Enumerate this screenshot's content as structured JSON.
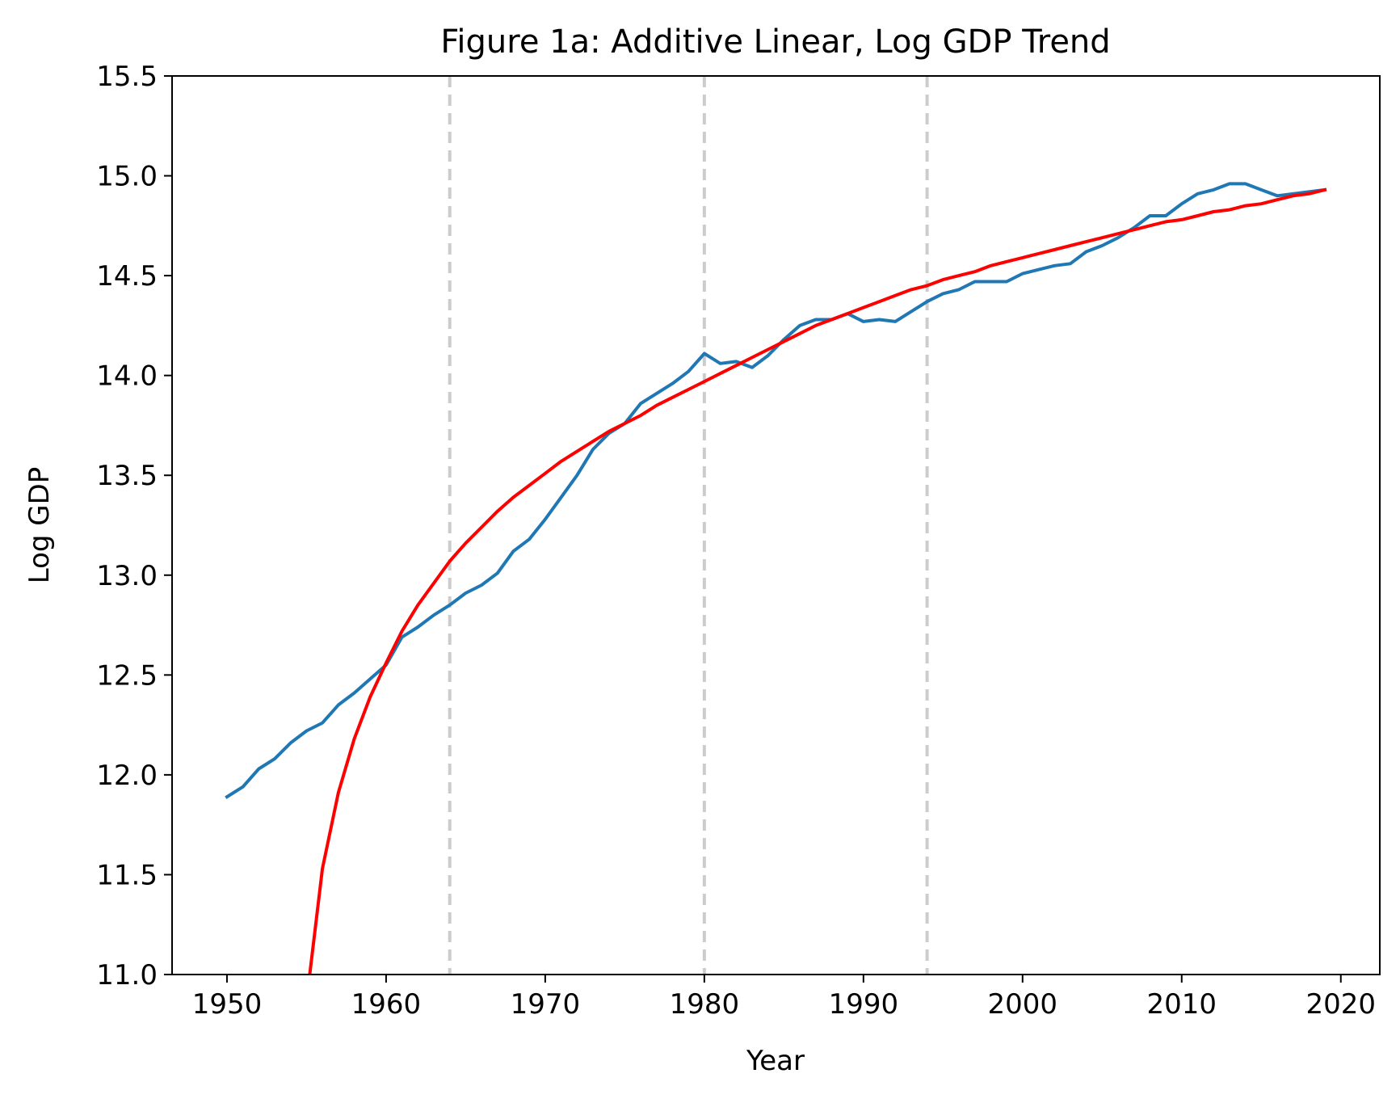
{
  "chart_data": {
    "type": "line",
    "title": "Figure 1a: Additive Linear, Log GDP Trend",
    "xlabel": "Year",
    "ylabel": "Log GDP",
    "xlim": [
      1946.55,
      2022.45
    ],
    "ylim": [
      11.0,
      15.5
    ],
    "xticks": [
      1950,
      1960,
      1970,
      1980,
      1990,
      2000,
      2010,
      2020
    ],
    "xtick_labels": [
      "1950",
      "1960",
      "1970",
      "1980",
      "1990",
      "2000",
      "2010",
      "2020"
    ],
    "yticks": [
      11.0,
      11.5,
      12.0,
      12.5,
      13.0,
      13.5,
      14.0,
      14.5,
      15.0,
      15.5
    ],
    "ytick_labels": [
      "11.0",
      "11.5",
      "12.0",
      "12.5",
      "13.0",
      "13.5",
      "14.0",
      "14.5",
      "15.0",
      "15.5"
    ],
    "grid": false,
    "reference_lines": {
      "orientation": "vertical",
      "style": "dashed",
      "color": "#cccccc",
      "x": [
        1964,
        1980,
        1994
      ]
    },
    "series": [
      {
        "color": "#1f77b4",
        "x": [
          1950,
          1951,
          1952,
          1953,
          1954,
          1955,
          1956,
          1957,
          1958,
          1959,
          1960,
          1961,
          1962,
          1963,
          1964,
          1965,
          1966,
          1967,
          1968,
          1969,
          1970,
          1971,
          1972,
          1973,
          1974,
          1975,
          1976,
          1977,
          1978,
          1979,
          1980,
          1981,
          1982,
          1983,
          1984,
          1985,
          1986,
          1987,
          1988,
          1989,
          1990,
          1991,
          1992,
          1993,
          1994,
          1995,
          1996,
          1997,
          1998,
          1999,
          2000,
          2001,
          2002,
          2003,
          2004,
          2005,
          2006,
          2007,
          2008,
          2009,
          2010,
          2011,
          2012,
          2013,
          2014,
          2015,
          2016,
          2017,
          2018,
          2019
        ],
        "y": [
          11.89,
          11.94,
          12.03,
          12.08,
          12.16,
          12.22,
          12.26,
          12.35,
          12.41,
          12.48,
          12.55,
          12.69,
          12.74,
          12.8,
          12.85,
          12.91,
          12.95,
          13.01,
          13.12,
          13.18,
          13.28,
          13.39,
          13.5,
          13.63,
          13.71,
          13.76,
          13.86,
          13.91,
          13.96,
          14.02,
          14.11,
          14.06,
          14.07,
          14.04,
          14.1,
          14.18,
          14.25,
          14.28,
          14.28,
          14.31,
          14.27,
          14.28,
          14.27,
          14.32,
          14.37,
          14.41,
          14.43,
          14.47,
          14.47,
          14.47,
          14.51,
          14.53,
          14.55,
          14.56,
          14.62,
          14.65,
          14.69,
          14.74,
          14.8,
          14.8,
          14.86,
          14.91,
          14.93,
          14.96,
          14.96,
          14.93,
          14.9,
          14.91,
          14.92,
          14.93
        ]
      },
      {
        "color": "#ff0000",
        "x": [
          1955.2,
          1956,
          1957,
          1958,
          1959,
          1960,
          1961,
          1962,
          1963,
          1964,
          1965,
          1966,
          1967,
          1968,
          1969,
          1970,
          1971,
          1972,
          1973,
          1974,
          1975,
          1976,
          1977,
          1978,
          1979,
          1980,
          1981,
          1982,
          1983,
          1984,
          1985,
          1986,
          1987,
          1988,
          1989,
          1990,
          1991,
          1992,
          1993,
          1994,
          1995,
          1996,
          1997,
          1998,
          1999,
          2000,
          2001,
          2002,
          2003,
          2004,
          2005,
          2006,
          2007,
          2008,
          2009,
          2010,
          2011,
          2012,
          2013,
          2014,
          2015,
          2016,
          2017,
          2018,
          2019
        ],
        "y": [
          11.0,
          11.53,
          11.91,
          12.18,
          12.39,
          12.56,
          12.72,
          12.85,
          12.96,
          13.07,
          13.16,
          13.24,
          13.32,
          13.39,
          13.45,
          13.51,
          13.57,
          13.62,
          13.67,
          13.72,
          13.76,
          13.8,
          13.85,
          13.89,
          13.93,
          13.97,
          14.01,
          14.05,
          14.09,
          14.13,
          14.17,
          14.21,
          14.25,
          14.28,
          14.31,
          14.34,
          14.37,
          14.4,
          14.43,
          14.45,
          14.48,
          14.5,
          14.52,
          14.55,
          14.57,
          14.59,
          14.61,
          14.63,
          14.65,
          14.67,
          14.69,
          14.71,
          14.73,
          14.75,
          14.77,
          14.78,
          14.8,
          14.82,
          14.83,
          14.85,
          14.86,
          14.88,
          14.9,
          14.91,
          14.93
        ]
      }
    ]
  }
}
